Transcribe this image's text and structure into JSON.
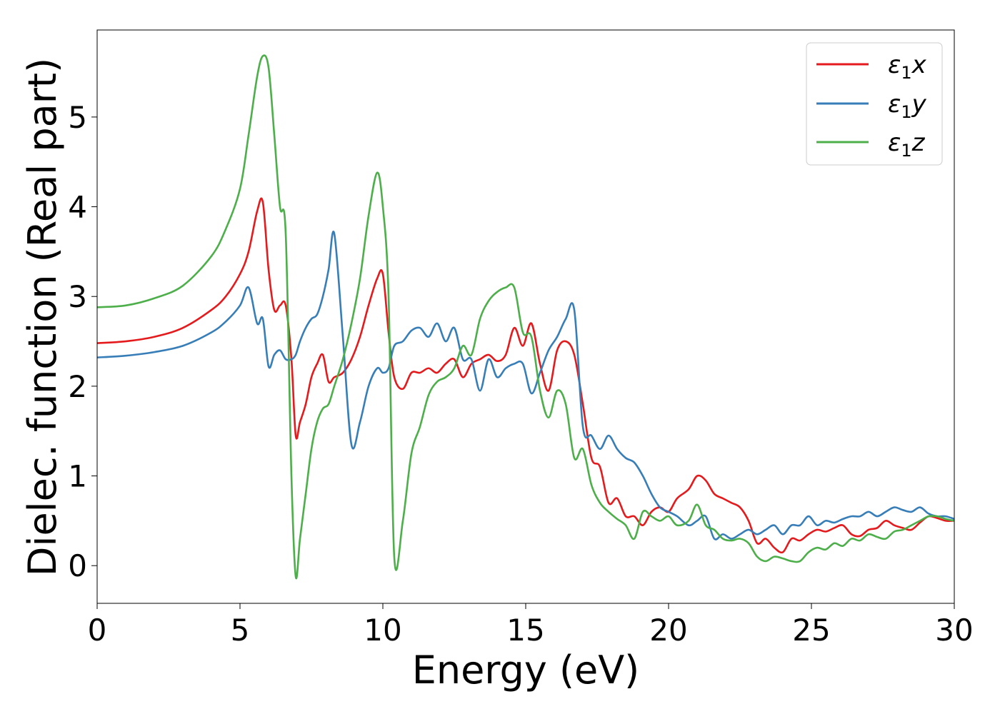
{
  "chart_data": {
    "type": "line",
    "title": "",
    "xlabel": "Energy (eV)",
    "ylabel": "Dielec. function (Real part)",
    "xlim": [
      0,
      30
    ],
    "ylim": [
      -0.42,
      5.97
    ],
    "xticks": [
      0,
      5,
      10,
      15,
      20,
      25,
      30
    ],
    "yticks": [
      0,
      1,
      2,
      3,
      4,
      5
    ],
    "grid": false,
    "legend_position": "top-right",
    "series": [
      {
        "name": "ε1x",
        "legend_base": "ε",
        "legend_sub": "1",
        "legend_var": "x",
        "color": "#e41a1c",
        "x": [
          0,
          1,
          2,
          3,
          4,
          4.5,
          5,
          5.3,
          5.6,
          5.8,
          6.0,
          6.2,
          6.4,
          6.6,
          6.8,
          6.95,
          7.1,
          7.3,
          7.5,
          7.7,
          7.9,
          8.1,
          8.3,
          8.6,
          8.9,
          9.2,
          9.5,
          9.8,
          10.0,
          10.2,
          10.4,
          10.7,
          11.0,
          11.3,
          11.6,
          11.9,
          12.2,
          12.5,
          12.8,
          13.1,
          13.4,
          13.7,
          14.0,
          14.3,
          14.6,
          14.9,
          15.2,
          15.5,
          15.8,
          16.1,
          16.4,
          16.7,
          17.0,
          17.3,
          17.6,
          17.9,
          18.2,
          18.5,
          18.8,
          19.1,
          19.4,
          19.7,
          20.0,
          20.3,
          20.7,
          21.0,
          21.3,
          21.6,
          21.9,
          22.2,
          22.5,
          22.8,
          23.1,
          23.4,
          23.7,
          24.0,
          24.3,
          24.6,
          24.9,
          25.2,
          25.5,
          25.8,
          26.1,
          26.4,
          26.7,
          27.0,
          27.3,
          27.6,
          27.9,
          28.2,
          28.5,
          28.8,
          29.1,
          29.4,
          29.7,
          30.0
        ],
        "values": [
          2.48,
          2.5,
          2.55,
          2.65,
          2.85,
          3.0,
          3.25,
          3.5,
          3.95,
          4.05,
          3.3,
          2.85,
          2.9,
          2.9,
          2.3,
          1.45,
          1.6,
          1.8,
          2.1,
          2.25,
          2.35,
          2.05,
          2.1,
          2.15,
          2.3,
          2.55,
          2.9,
          3.2,
          3.25,
          2.6,
          2.1,
          1.97,
          2.15,
          2.15,
          2.2,
          2.15,
          2.25,
          2.3,
          2.1,
          2.25,
          2.3,
          2.35,
          2.28,
          2.35,
          2.65,
          2.45,
          2.7,
          2.25,
          1.95,
          2.4,
          2.5,
          2.35,
          1.8,
          1.2,
          1.1,
          0.7,
          0.75,
          0.55,
          0.55,
          0.45,
          0.6,
          0.65,
          0.6,
          0.75,
          0.85,
          1.0,
          0.95,
          0.8,
          0.75,
          0.7,
          0.65,
          0.5,
          0.25,
          0.3,
          0.2,
          0.15,
          0.3,
          0.28,
          0.35,
          0.4,
          0.38,
          0.42,
          0.45,
          0.35,
          0.33,
          0.4,
          0.42,
          0.5,
          0.45,
          0.42,
          0.4,
          0.48,
          0.55,
          0.53,
          0.5,
          0.5
        ]
      },
      {
        "name": "ε1y",
        "legend_base": "ε",
        "legend_sub": "1",
        "legend_var": "y",
        "color": "#377eb8",
        "x": [
          0,
          1,
          2,
          3,
          4,
          4.5,
          5,
          5.3,
          5.6,
          5.8,
          6.0,
          6.2,
          6.4,
          6.6,
          6.8,
          6.95,
          7.1,
          7.3,
          7.5,
          7.7,
          7.9,
          8.1,
          8.3,
          8.6,
          8.9,
          9.2,
          9.5,
          9.8,
          10.0,
          10.2,
          10.4,
          10.7,
          11.0,
          11.3,
          11.6,
          11.9,
          12.2,
          12.5,
          12.8,
          13.1,
          13.4,
          13.7,
          14.0,
          14.3,
          14.6,
          14.9,
          15.2,
          15.5,
          15.8,
          16.1,
          16.4,
          16.7,
          17.0,
          17.3,
          17.6,
          17.9,
          18.2,
          18.5,
          18.8,
          19.1,
          19.4,
          19.7,
          20.0,
          20.3,
          20.7,
          21.0,
          21.3,
          21.6,
          21.9,
          22.2,
          22.5,
          22.8,
          23.1,
          23.4,
          23.7,
          24.0,
          24.3,
          24.6,
          24.9,
          25.2,
          25.5,
          25.8,
          26.1,
          26.4,
          26.7,
          27.0,
          27.3,
          27.6,
          27.9,
          28.2,
          28.5,
          28.8,
          29.1,
          29.4,
          29.7,
          30.0
        ],
        "values": [
          2.32,
          2.34,
          2.38,
          2.45,
          2.6,
          2.72,
          2.9,
          3.1,
          2.7,
          2.75,
          2.22,
          2.35,
          2.4,
          2.3,
          2.3,
          2.35,
          2.5,
          2.65,
          2.75,
          2.8,
          3.0,
          3.3,
          3.7,
          2.55,
          1.35,
          1.6,
          2.0,
          2.2,
          2.15,
          2.2,
          2.45,
          2.5,
          2.62,
          2.65,
          2.55,
          2.7,
          2.5,
          2.65,
          2.3,
          2.3,
          1.95,
          2.3,
          2.1,
          2.2,
          2.25,
          2.25,
          1.92,
          2.15,
          2.4,
          2.55,
          2.75,
          2.85,
          1.55,
          1.45,
          1.3,
          1.45,
          1.3,
          1.2,
          1.15,
          1.0,
          0.8,
          0.65,
          0.6,
          0.55,
          0.45,
          0.5,
          0.55,
          0.3,
          0.35,
          0.3,
          0.35,
          0.4,
          0.35,
          0.4,
          0.45,
          0.35,
          0.45,
          0.45,
          0.55,
          0.45,
          0.5,
          0.48,
          0.52,
          0.55,
          0.55,
          0.6,
          0.55,
          0.6,
          0.65,
          0.62,
          0.6,
          0.65,
          0.58,
          0.55,
          0.55,
          0.52
        ]
      },
      {
        "name": "ε1z",
        "legend_base": "ε",
        "legend_sub": "1",
        "legend_var": "z",
        "color": "#4daf4a",
        "x": [
          0,
          1,
          2,
          3,
          4,
          4.5,
          5,
          5.3,
          5.6,
          5.8,
          6.0,
          6.2,
          6.4,
          6.6,
          6.8,
          6.95,
          7.1,
          7.3,
          7.5,
          7.7,
          7.9,
          8.1,
          8.3,
          8.6,
          8.9,
          9.2,
          9.5,
          9.8,
          10.0,
          10.2,
          10.4,
          10.7,
          11.0,
          11.3,
          11.6,
          11.9,
          12.2,
          12.5,
          12.8,
          13.1,
          13.4,
          13.7,
          14.0,
          14.3,
          14.6,
          14.9,
          15.2,
          15.5,
          15.8,
          16.1,
          16.4,
          16.7,
          17.0,
          17.3,
          17.6,
          17.9,
          18.2,
          18.5,
          18.8,
          19.1,
          19.4,
          19.7,
          20.0,
          20.3,
          20.7,
          21.0,
          21.3,
          21.6,
          21.9,
          22.2,
          22.5,
          22.8,
          23.1,
          23.4,
          23.7,
          24.0,
          24.3,
          24.6,
          24.9,
          25.2,
          25.5,
          25.8,
          26.1,
          26.4,
          26.7,
          27.0,
          27.3,
          27.6,
          27.9,
          28.2,
          28.5,
          28.8,
          29.1,
          29.4,
          29.7,
          30.0
        ],
        "values": [
          2.88,
          2.9,
          2.98,
          3.12,
          3.45,
          3.75,
          4.2,
          4.8,
          5.45,
          5.68,
          5.55,
          4.8,
          4.0,
          3.7,
          1.0,
          -0.12,
          0.3,
          0.8,
          1.3,
          1.6,
          1.75,
          1.8,
          2.0,
          2.3,
          2.7,
          3.2,
          3.9,
          4.38,
          4.0,
          3.0,
          0.09,
          0.5,
          1.25,
          1.55,
          1.9,
          2.05,
          2.1,
          2.2,
          2.45,
          2.35,
          2.75,
          2.95,
          3.05,
          3.1,
          3.1,
          2.6,
          2.55,
          1.95,
          1.65,
          1.95,
          1.8,
          1.2,
          1.3,
          0.9,
          0.7,
          0.6,
          0.52,
          0.45,
          0.3,
          0.6,
          0.55,
          0.5,
          0.55,
          0.45,
          0.5,
          0.68,
          0.45,
          0.4,
          0.3,
          0.28,
          0.3,
          0.25,
          0.1,
          0.05,
          0.1,
          0.08,
          0.05,
          0.05,
          0.15,
          0.2,
          0.18,
          0.25,
          0.22,
          0.3,
          0.28,
          0.35,
          0.32,
          0.3,
          0.38,
          0.4,
          0.45,
          0.5,
          0.55,
          0.55,
          0.52,
          0.5
        ]
      }
    ]
  }
}
